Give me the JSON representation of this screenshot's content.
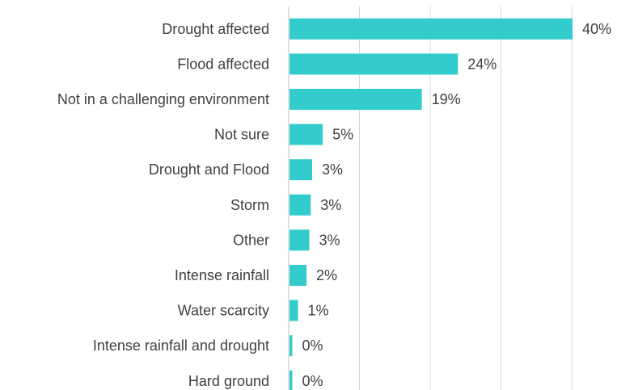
{
  "chart_data": {
    "type": "bar",
    "orientation": "horizontal",
    "categories": [
      "Drought affected",
      "Flood affected",
      "Not in a challenging environment",
      "Not sure",
      "Drought and Flood",
      "Storm",
      "Other",
      "Intense rainfall",
      "Water scarcity",
      "Intense rainfall and drought",
      "Hard ground"
    ],
    "values": [
      40,
      24,
      19,
      5,
      3,
      3,
      3,
      2,
      1,
      0,
      0
    ],
    "value_labels": [
      "40%",
      "24%",
      "19%",
      "5%",
      "3%",
      "3%",
      "3%",
      "2%",
      "1%",
      "0%",
      "0%"
    ],
    "plot_values": [
      40,
      23.8,
      18.7,
      4.7,
      3.2,
      3.0,
      2.8,
      2.4,
      1.2,
      0.4,
      0.4
    ],
    "unit": "%",
    "xlim": [
      0,
      40
    ],
    "gridlines": [
      0,
      10,
      20,
      30,
      40
    ],
    "grid": true,
    "legend": "none",
    "bar_color": "#33cccc"
  }
}
